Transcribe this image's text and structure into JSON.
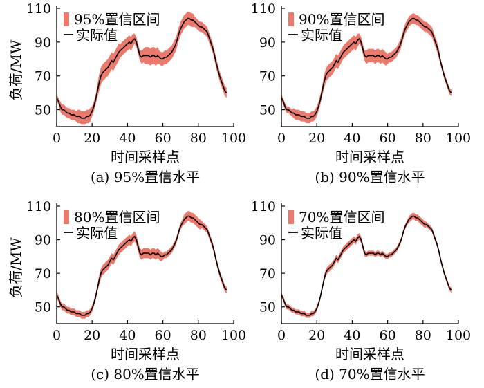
{
  "colors": {
    "band": "#ec7a6c",
    "line": "#000000",
    "axis": "#000000"
  },
  "chart_data": [
    {
      "type": "line",
      "caption": "(a)  95%置信水平",
      "xlabel": "时间采样点",
      "ylabel": "负荷/MW",
      "xlim": [
        0,
        100
      ],
      "ylim": [
        40,
        110
      ],
      "xticks": [
        0,
        20,
        40,
        60,
        80,
        100
      ],
      "yticks": [
        50,
        70,
        90,
        110
      ],
      "legend": {
        "band": "95%置信区间",
        "line": "实际值",
        "position": "top-left"
      },
      "band_width": [
        2,
        2,
        3,
        3,
        3,
        3,
        3,
        3,
        3,
        3,
        3,
        3,
        4,
        4,
        4,
        4,
        4,
        4,
        4,
        4,
        3,
        3,
        3,
        4,
        5,
        5,
        5,
        5,
        5,
        5,
        5,
        5,
        5,
        5,
        5,
        5,
        4,
        4,
        4,
        4,
        4,
        4,
        4,
        4,
        3,
        3,
        3,
        3,
        4,
        4,
        5,
        5,
        5,
        5,
        5,
        5,
        5,
        5,
        4,
        4,
        4,
        4,
        4,
        4,
        4,
        4,
        4,
        4,
        4,
        4,
        4,
        4,
        4,
        4,
        4,
        4,
        4,
        4,
        3,
        3,
        3,
        3,
        3,
        3,
        3,
        3,
        3,
        3,
        3,
        3,
        3,
        3,
        3,
        3,
        3,
        3,
        3,
        3
      ]
    },
    {
      "type": "line",
      "caption": "(b)  90%置信水平",
      "xlabel": "时间采样点",
      "ylabel": "",
      "xlim": [
        0,
        100
      ],
      "ylim": [
        40,
        110
      ],
      "xticks": [
        0,
        20,
        40,
        60,
        80,
        100
      ],
      "yticks": [
        50,
        70,
        90,
        110
      ],
      "legend": {
        "band": "90%置信区间",
        "line": "实际值",
        "position": "top-left"
      },
      "band_width": [
        2,
        2,
        2,
        2,
        2,
        2,
        2,
        3,
        3,
        3,
        3,
        3,
        3,
        3,
        3,
        3,
        3,
        3,
        3,
        3,
        3,
        3,
        3,
        3,
        4,
        4,
        4,
        4,
        4,
        4,
        4,
        4,
        4,
        4,
        4,
        4,
        4,
        4,
        4,
        4,
        4,
        4,
        4,
        4,
        3,
        3,
        3,
        3,
        4,
        4,
        4,
        4,
        4,
        4,
        4,
        4,
        4,
        4,
        4,
        4,
        3,
        3,
        3,
        3,
        3,
        3,
        3,
        3,
        3,
        3,
        3,
        3,
        3,
        3,
        3,
        3,
        3,
        3,
        3,
        3,
        3,
        3,
        3,
        3,
        3,
        3,
        3,
        3,
        3,
        3,
        2,
        2,
        2,
        2,
        2,
        2,
        2,
        2
      ]
    },
    {
      "type": "line",
      "caption": "(c)  80%置信水平",
      "xlabel": "时间采样点",
      "ylabel": "负荷/MW",
      "xlim": [
        0,
        100
      ],
      "ylim": [
        40,
        110
      ],
      "xticks": [
        0,
        20,
        40,
        60,
        80,
        100
      ],
      "yticks": [
        50,
        70,
        90,
        110
      ],
      "legend": {
        "band": "80%置信区间",
        "line": "实际值",
        "position": "top-left"
      },
      "band_width": [
        2,
        2,
        2,
        2,
        2,
        2,
        2,
        2,
        2,
        2,
        2,
        2,
        2,
        2,
        2,
        2,
        2,
        2,
        2,
        2,
        2,
        2,
        2,
        2,
        3,
        3,
        3,
        3,
        3,
        3,
        3,
        3,
        3,
        3,
        3,
        3,
        3,
        3,
        3,
        3,
        3,
        3,
        3,
        3,
        3,
        3,
        3,
        3,
        3,
        3,
        3,
        3,
        3,
        3,
        3,
        3,
        3,
        3,
        3,
        3,
        2,
        2,
        2,
        2,
        2,
        2,
        2,
        2,
        2,
        2,
        2,
        2,
        3,
        3,
        3,
        3,
        3,
        3,
        3,
        3,
        3,
        3,
        2,
        2,
        2,
        2,
        2,
        2,
        2,
        2,
        2,
        2,
        2,
        2,
        2,
        2,
        2,
        2
      ]
    },
    {
      "type": "line",
      "caption": "(d)  70%置信水平",
      "xlabel": "时间采样点",
      "ylabel": "",
      "xlim": [
        0,
        100
      ],
      "ylim": [
        40,
        110
      ],
      "xticks": [
        0,
        20,
        40,
        60,
        80,
        100
      ],
      "yticks": [
        50,
        70,
        90,
        110
      ],
      "legend": {
        "band": "70%置信区间",
        "line": "实际值",
        "position": "top-left"
      },
      "band_width": [
        1.5,
        1.5,
        1.5,
        1.5,
        1.5,
        1.5,
        1.5,
        1.5,
        1.5,
        1.5,
        1.5,
        1.5,
        1.5,
        1.5,
        1.5,
        1.5,
        1.5,
        1.5,
        1.5,
        1.5,
        1.5,
        1.5,
        1.5,
        1.5,
        2,
        2,
        2,
        2,
        2,
        2,
        2,
        2,
        2,
        2,
        2,
        2,
        2,
        2,
        2,
        2,
        2,
        2,
        2,
        2,
        2,
        2,
        2,
        2,
        1.5,
        1.5,
        1.5,
        1.5,
        1.5,
        1.5,
        1.5,
        1.5,
        1.5,
        1.5,
        1.5,
        1.5,
        1.5,
        1.5,
        1.5,
        1.5,
        1.5,
        1.5,
        1.5,
        1.5,
        1.5,
        1.5,
        1.5,
        1.5,
        2,
        2,
        2,
        2,
        2,
        2,
        2,
        2,
        2,
        2,
        1.5,
        1.5,
        1.5,
        1.5,
        1.5,
        1.5,
        1.5,
        1.5,
        1.5,
        1.5,
        1.5,
        1.5,
        1.5,
        1.5,
        1.5,
        1.5
      ]
    }
  ],
  "actual_series": {
    "name": "实际值",
    "x": [
      0,
      1,
      2,
      3,
      4,
      5,
      6,
      7,
      8,
      9,
      10,
      11,
      12,
      13,
      14,
      15,
      16,
      17,
      18,
      19,
      20,
      21,
      22,
      23,
      24,
      25,
      26,
      27,
      28,
      29,
      30,
      31,
      32,
      33,
      34,
      35,
      36,
      37,
      38,
      39,
      40,
      41,
      42,
      43,
      44,
      45,
      46,
      47,
      48,
      49,
      50,
      51,
      52,
      53,
      54,
      55,
      56,
      57,
      58,
      59,
      60,
      61,
      62,
      63,
      64,
      65,
      66,
      67,
      68,
      69,
      70,
      71,
      72,
      73,
      74,
      75,
      76,
      77,
      78,
      79,
      80,
      81,
      82,
      83,
      84,
      85,
      86,
      87,
      88,
      89,
      90,
      91,
      92,
      93,
      94,
      95,
      96
    ],
    "y": [
      57,
      55,
      52,
      50,
      50,
      49,
      48,
      48,
      47,
      47,
      47,
      46,
      46,
      46,
      45,
      45,
      45,
      46,
      46,
      47,
      49,
      52,
      56,
      61,
      66,
      70,
      72,
      73,
      74,
      75,
      77,
      79,
      78,
      80,
      82,
      84,
      85,
      86,
      87,
      88,
      89,
      90,
      89,
      91,
      92,
      90,
      86,
      82,
      81,
      82,
      82,
      82,
      82,
      81,
      82,
      82,
      81,
      82,
      81,
      80,
      80,
      81,
      81,
      82,
      83,
      84,
      86,
      88,
      91,
      95,
      98,
      100,
      102,
      103,
      104,
      104,
      103,
      103,
      102,
      101,
      100,
      99,
      99,
      98,
      97,
      96,
      93,
      90,
      87,
      83,
      78,
      74,
      70,
      67,
      64,
      61,
      60
    ]
  }
}
